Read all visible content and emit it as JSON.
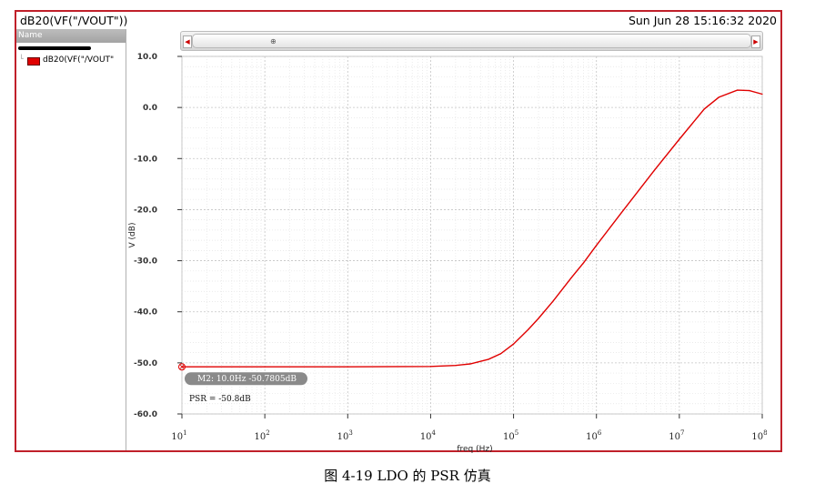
{
  "window": {
    "trace_title": "dB20(VF(\"/VOUT\"))",
    "timestamp": "Sun Jun 28 15:16:32 2020"
  },
  "legend": {
    "header": "Name",
    "items": [
      {
        "label": "dB20(VF(\"/VOUT\"",
        "color": "#e00000"
      }
    ]
  },
  "scrollbar": {
    "left_arrow": "◀",
    "right_arrow": "▶",
    "grip": "⊕"
  },
  "marker": {
    "label": "M2: 10.0Hz -50.7805dB",
    "annotation": "PSR = -50.8dB",
    "x": 10.0,
    "y": -50.7805
  },
  "caption": "图 4-19 LDO 的 PSR 仿真",
  "chart_data": {
    "type": "line",
    "title": "",
    "xlabel": "freq (Hz)",
    "ylabel": "V (dB)",
    "x_scale": "log",
    "xlim": [
      10,
      100000000
    ],
    "ylim": [
      -60,
      10
    ],
    "grid": true,
    "x_ticks": [
      {
        "value": 10,
        "base": "10",
        "exp": "1"
      },
      {
        "value": 100,
        "base": "10",
        "exp": "2"
      },
      {
        "value": 1000,
        "base": "10",
        "exp": "3"
      },
      {
        "value": 10000,
        "base": "10",
        "exp": "4"
      },
      {
        "value": 100000,
        "base": "10",
        "exp": "5"
      },
      {
        "value": 1000000,
        "base": "10",
        "exp": "6"
      },
      {
        "value": 10000000,
        "base": "10",
        "exp": "7"
      },
      {
        "value": 100000000,
        "base": "10",
        "exp": "8"
      }
    ],
    "y_ticks": [
      {
        "value": 10,
        "label": "10.0"
      },
      {
        "value": 0,
        "label": "0.0"
      },
      {
        "value": -10,
        "label": "-10.0"
      },
      {
        "value": -20,
        "label": "-20.0"
      },
      {
        "value": -30,
        "label": "-30.0"
      },
      {
        "value": -40,
        "label": "-40.0"
      },
      {
        "value": -50,
        "label": "-50.0"
      },
      {
        "value": -60,
        "label": "-60.0"
      }
    ],
    "series": [
      {
        "name": "dB20(VF(\"/VOUT\"",
        "color": "#e00000",
        "x": [
          10,
          100,
          1000,
          10000,
          20000,
          30000,
          50000,
          70000,
          100000,
          150000,
          200000,
          300000,
          500000,
          700000,
          1000000,
          2000000,
          5000000,
          10000000,
          20000000,
          30000000,
          50000000,
          70000000,
          100000000
        ],
        "y": [
          -50.78,
          -50.78,
          -50.78,
          -50.7,
          -50.5,
          -50.2,
          -49.3,
          -48.2,
          -46.3,
          -43.5,
          -41.3,
          -37.9,
          -33.3,
          -30.4,
          -27.0,
          -20.6,
          -12.3,
          -6.2,
          -0.3,
          2.0,
          3.4,
          3.3,
          2.6
        ]
      }
    ]
  }
}
